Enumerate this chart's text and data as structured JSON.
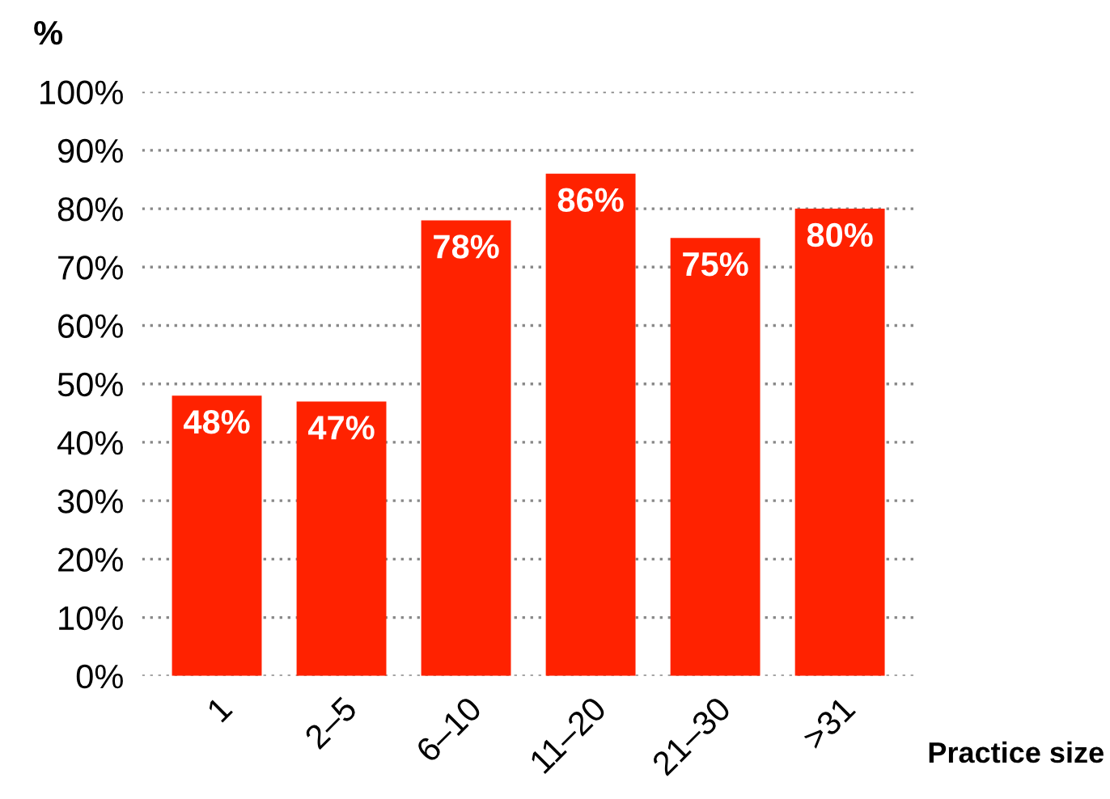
{
  "chart_data": {
    "type": "bar",
    "ylabel": "%",
    "xlabel": "Practice size",
    "categories": [
      "1",
      "2–5",
      "6–10",
      "11–20",
      "21–30",
      ">31"
    ],
    "values": [
      48,
      47,
      78,
      86,
      75,
      80
    ],
    "value_labels": [
      "48%",
      "47%",
      "78%",
      "86%",
      "75%",
      "80%"
    ],
    "color": "#ff2200",
    "ylim": [
      0,
      100
    ],
    "yticks": [
      {
        "value": 0,
        "label": "0%"
      },
      {
        "value": 10,
        "label": "10%"
      },
      {
        "value": 20,
        "label": "20%"
      },
      {
        "value": 30,
        "label": "30%"
      },
      {
        "value": 40,
        "label": "40%"
      },
      {
        "value": 50,
        "label": "50%"
      },
      {
        "value": 60,
        "label": "60%"
      },
      {
        "value": 70,
        "label": "70%"
      },
      {
        "value": 80,
        "label": "80%"
      },
      {
        "value": 90,
        "label": "90%"
      },
      {
        "value": 100,
        "label": "100%"
      }
    ],
    "grid": "y"
  }
}
